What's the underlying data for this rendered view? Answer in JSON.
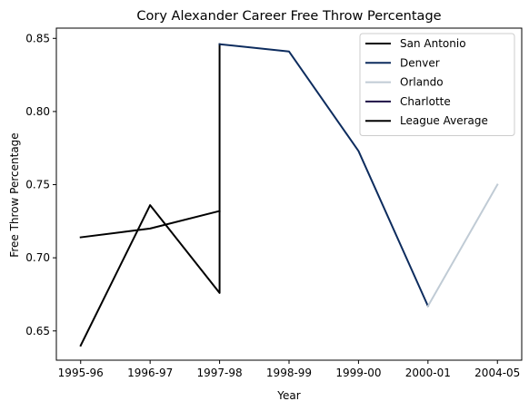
{
  "chart_data": {
    "type": "line",
    "title": "Cory Alexander Career Free Throw Percentage",
    "xlabel": "Year",
    "ylabel": "Free Throw Percentage",
    "categories": [
      "1995-96",
      "1996-97",
      "1997-98",
      "1998-99",
      "1999-00",
      "2000-01",
      "2004-05"
    ],
    "ylim": [
      0.63,
      0.857
    ],
    "yticks": [
      0.65,
      0.7,
      0.75,
      0.8,
      0.85
    ],
    "ytick_labels": [
      "0.65",
      "0.70",
      "0.75",
      "0.80",
      "0.85"
    ],
    "grid": false,
    "legend_position": "top-right",
    "series": [
      {
        "name": "San Antonio",
        "color": "#000000",
        "points": [
          {
            "x": "1995-96",
            "y": 0.64
          },
          {
            "x": "1996-97",
            "y": 0.736
          },
          {
            "x": "1997-98",
            "y": 0.676
          },
          {
            "x": "1997-98",
            "y": 0.846
          }
        ]
      },
      {
        "name": "Denver",
        "color": "#0d2c5e",
        "points": [
          {
            "x": "1997-98",
            "y": 0.846
          },
          {
            "x": "1998-99",
            "y": 0.841
          },
          {
            "x": "1999-00",
            "y": 0.773
          },
          {
            "x": "2000-01",
            "y": 0.667
          }
        ]
      },
      {
        "name": "Orlando",
        "color": "#c0cbd5",
        "points": [
          {
            "x": "2000-01",
            "y": 0.667
          },
          {
            "x": "2004-05",
            "y": 0.75
          }
        ]
      },
      {
        "name": "Charlotte",
        "color": "#1d1145",
        "points": []
      },
      {
        "name": "League Average",
        "color": "#000000",
        "points": [
          {
            "x": "1995-96",
            "y": 0.714
          },
          {
            "x": "1996-97",
            "y": 0.72
          },
          {
            "x": "1997-98",
            "y": 0.732
          }
        ]
      }
    ]
  }
}
